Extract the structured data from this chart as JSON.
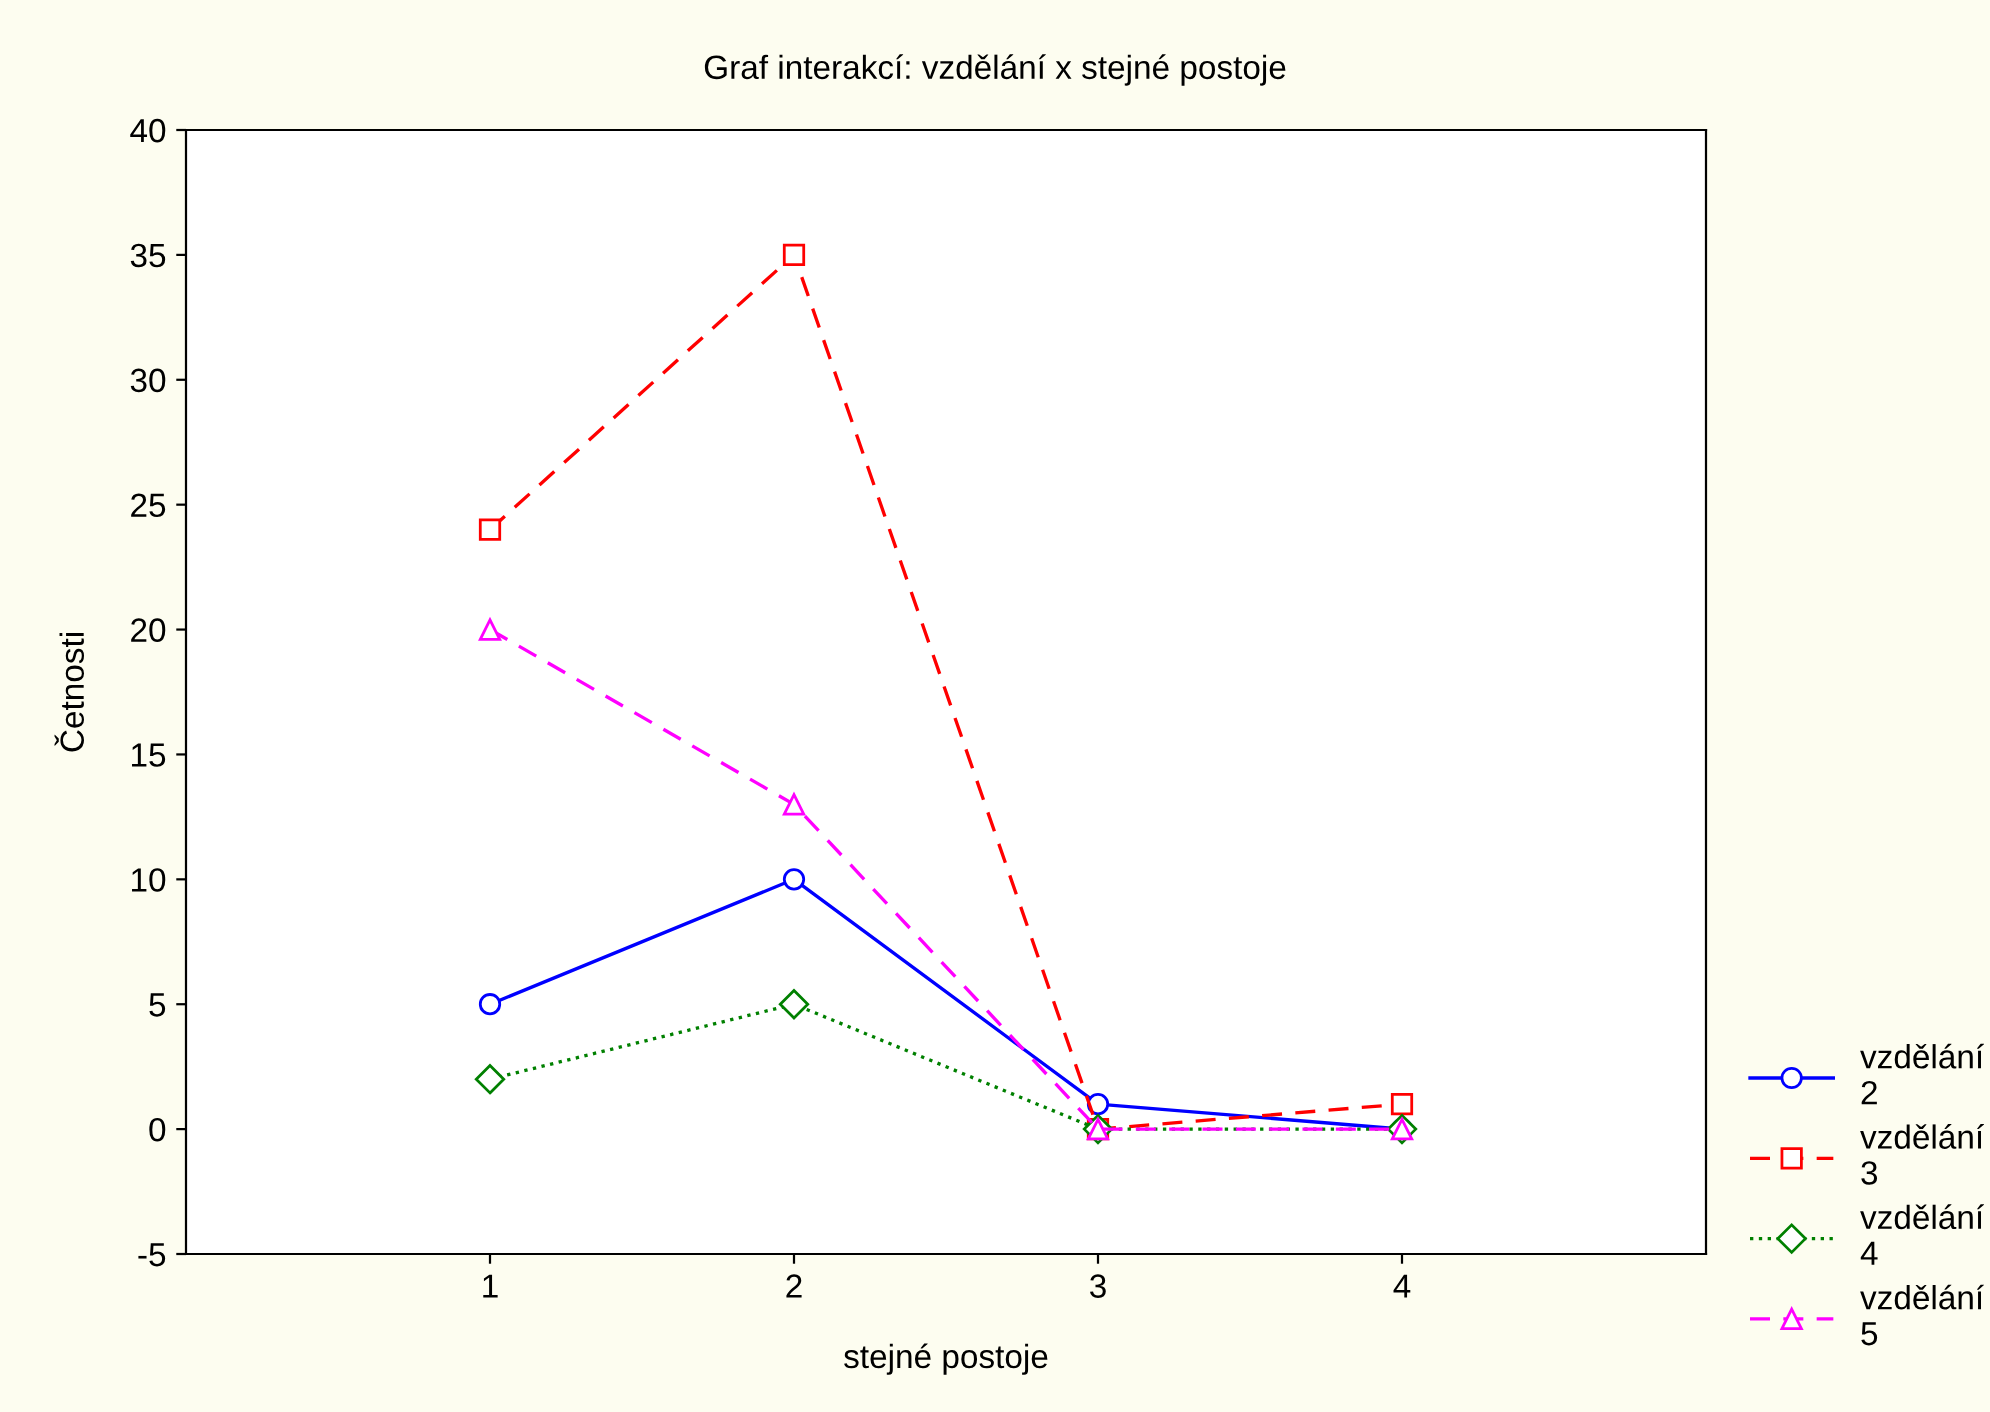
{
  "chart_data": {
    "type": "line",
    "title": "Graf interakcí: vzdělání x stejné postoje",
    "xlabel": "stejné postoje",
    "ylabel": "Četnosti",
    "x": [
      1,
      2,
      3,
      4
    ],
    "xlim": [
      0,
      5
    ],
    "xticks": [
      1,
      2,
      3,
      4
    ],
    "ylim": [
      -5,
      40
    ],
    "yticks": [
      -5,
      0,
      5,
      10,
      15,
      20,
      25,
      30,
      35,
      40
    ],
    "grid": false,
    "legend": "right",
    "series": [
      {
        "name": "vzdělání 2",
        "color": "#0000ff",
        "values": [
          5,
          10,
          1,
          0
        ],
        "marker": "circle",
        "line_style": "solid"
      },
      {
        "name": "vzdělání 3",
        "color": "#ff0000",
        "values": [
          24,
          35,
          0,
          1
        ],
        "marker": "square",
        "line_style": "dashed"
      },
      {
        "name": "vzdělání 4",
        "color": "#008000",
        "values": [
          2,
          5,
          0,
          0
        ],
        "marker": "diamond",
        "line_style": "dotted"
      },
      {
        "name": "vzdělání 5",
        "color": "#ff00ff",
        "values": [
          20,
          13,
          0,
          0
        ],
        "marker": "triangle",
        "line_style": "dashed"
      }
    ]
  }
}
